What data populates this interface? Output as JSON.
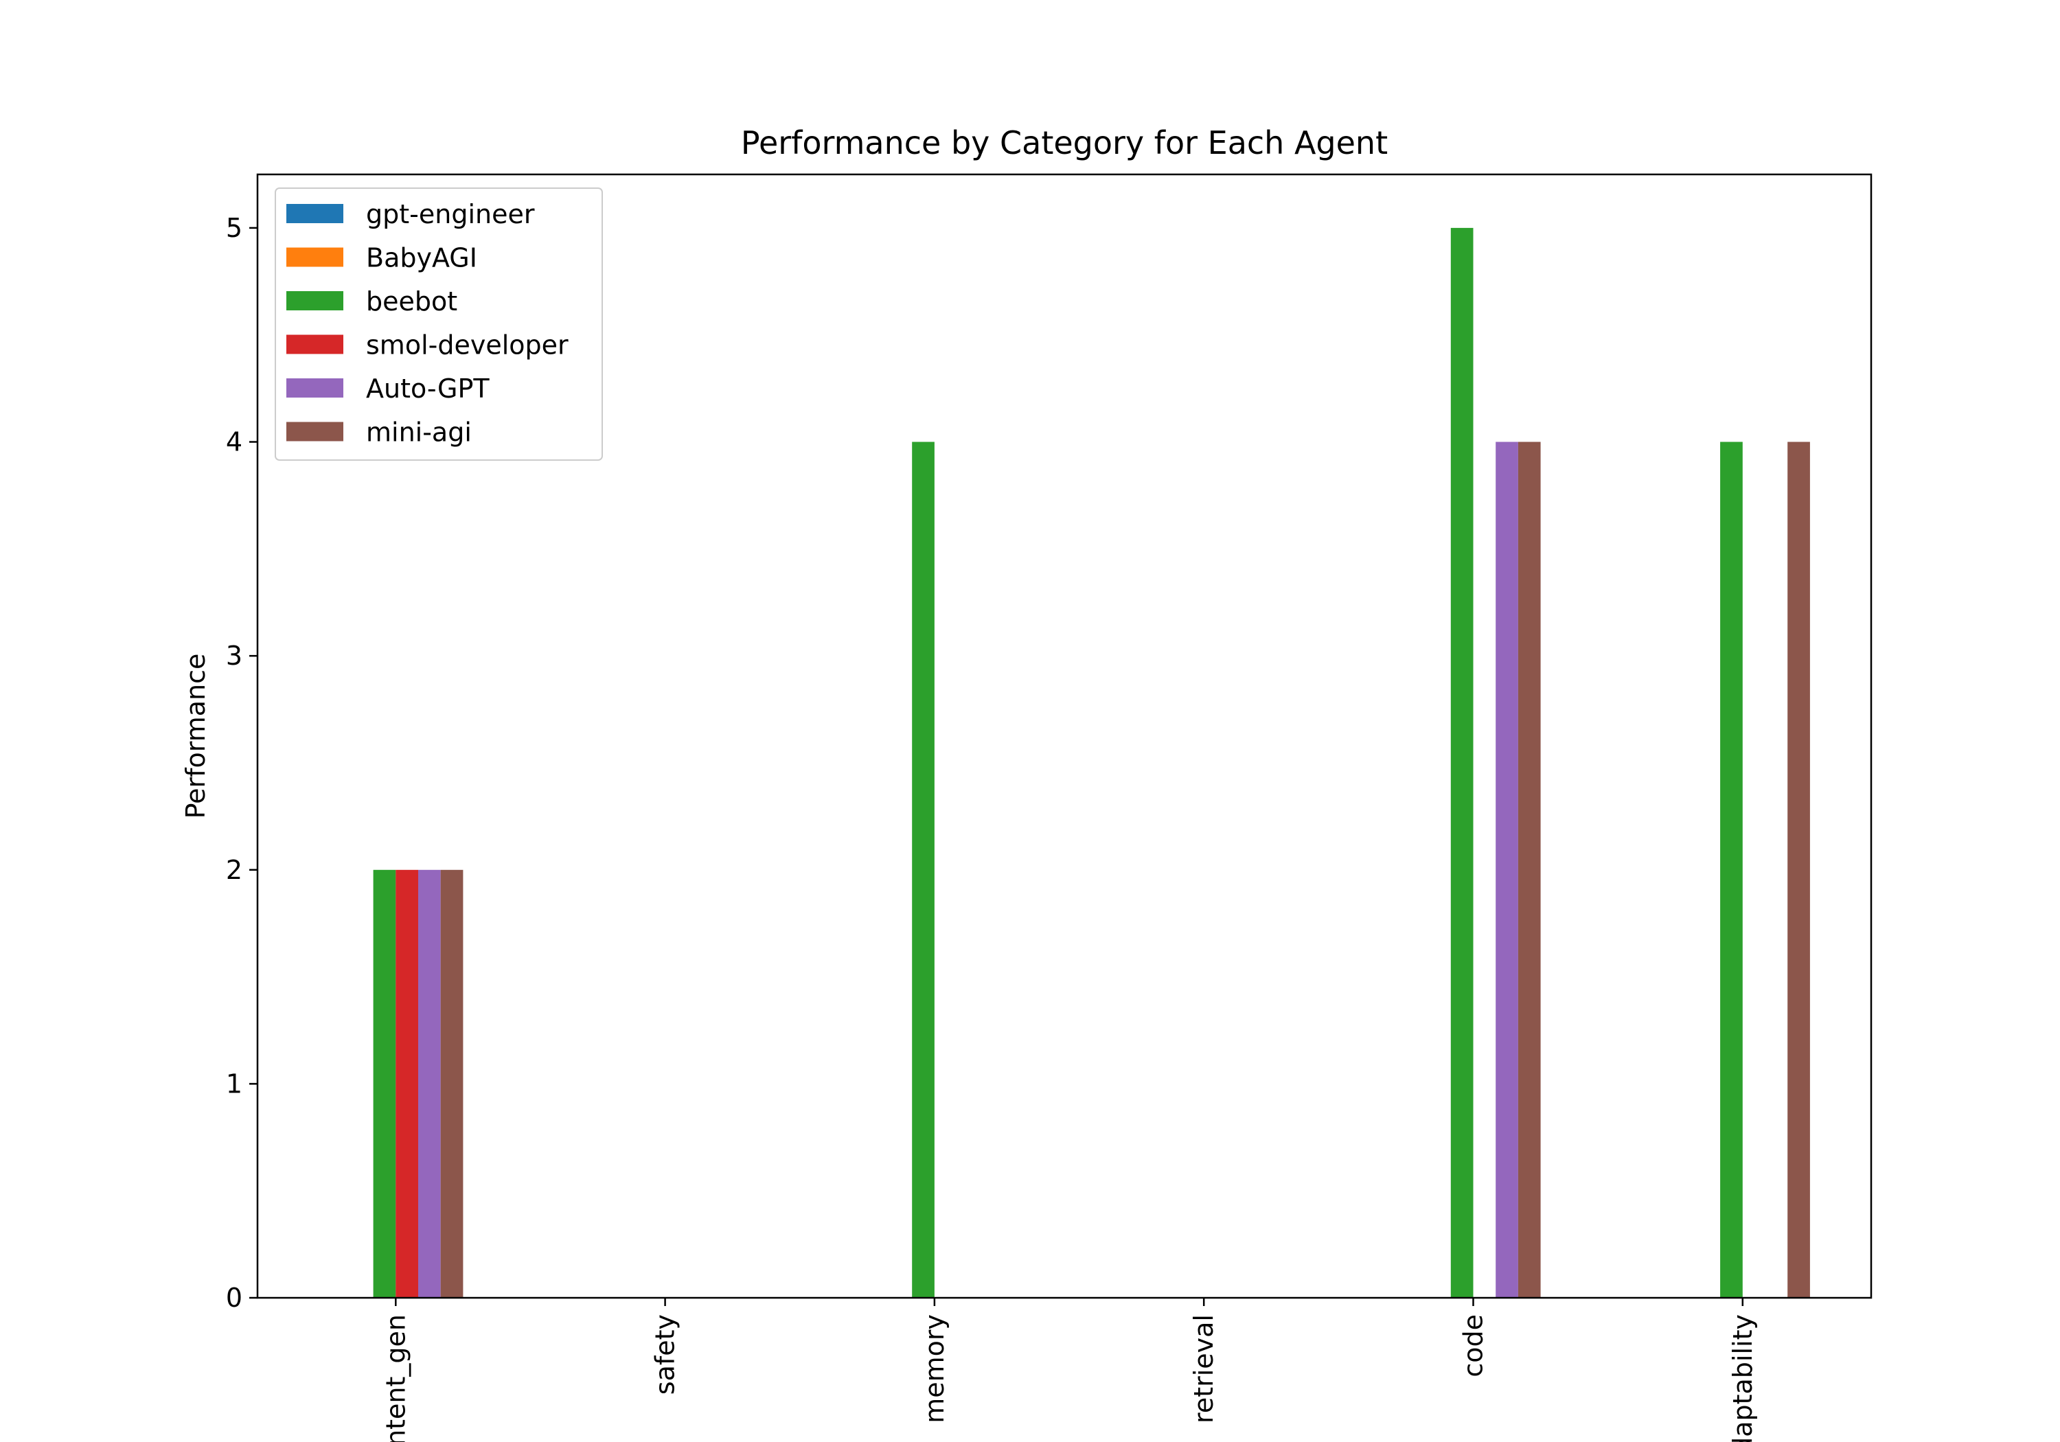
{
  "chart_data": {
    "type": "bar",
    "title": "Performance by Category for Each Agent",
    "xlabel": "",
    "ylabel": "Performance",
    "ylim": [
      0,
      5.25
    ],
    "yticks": [
      0,
      1,
      2,
      3,
      4,
      5
    ],
    "grid": false,
    "legend_position": "top-left",
    "categories": [
      "content_gen",
      "safety",
      "memory",
      "retrieval",
      "code",
      "adaptability"
    ],
    "series": [
      {
        "name": "gpt-engineer",
        "color": "#1f77b4",
        "values": [
          0,
          0,
          0,
          0,
          0,
          0
        ]
      },
      {
        "name": "BabyAGI",
        "color": "#ff7f0e",
        "values": [
          0,
          0,
          0,
          0,
          0,
          0
        ]
      },
      {
        "name": "beebot",
        "color": "#2ca02c",
        "values": [
          2,
          0,
          4,
          0,
          5,
          4
        ]
      },
      {
        "name": "smol-developer",
        "color": "#d62728",
        "values": [
          2,
          0,
          0,
          0,
          0,
          0
        ]
      },
      {
        "name": "Auto-GPT",
        "color": "#9467bd",
        "values": [
          2,
          0,
          0,
          0,
          4,
          0
        ]
      },
      {
        "name": "mini-agi",
        "color": "#8c564b",
        "values": [
          2,
          0,
          0,
          0,
          4,
          4
        ]
      }
    ]
  }
}
